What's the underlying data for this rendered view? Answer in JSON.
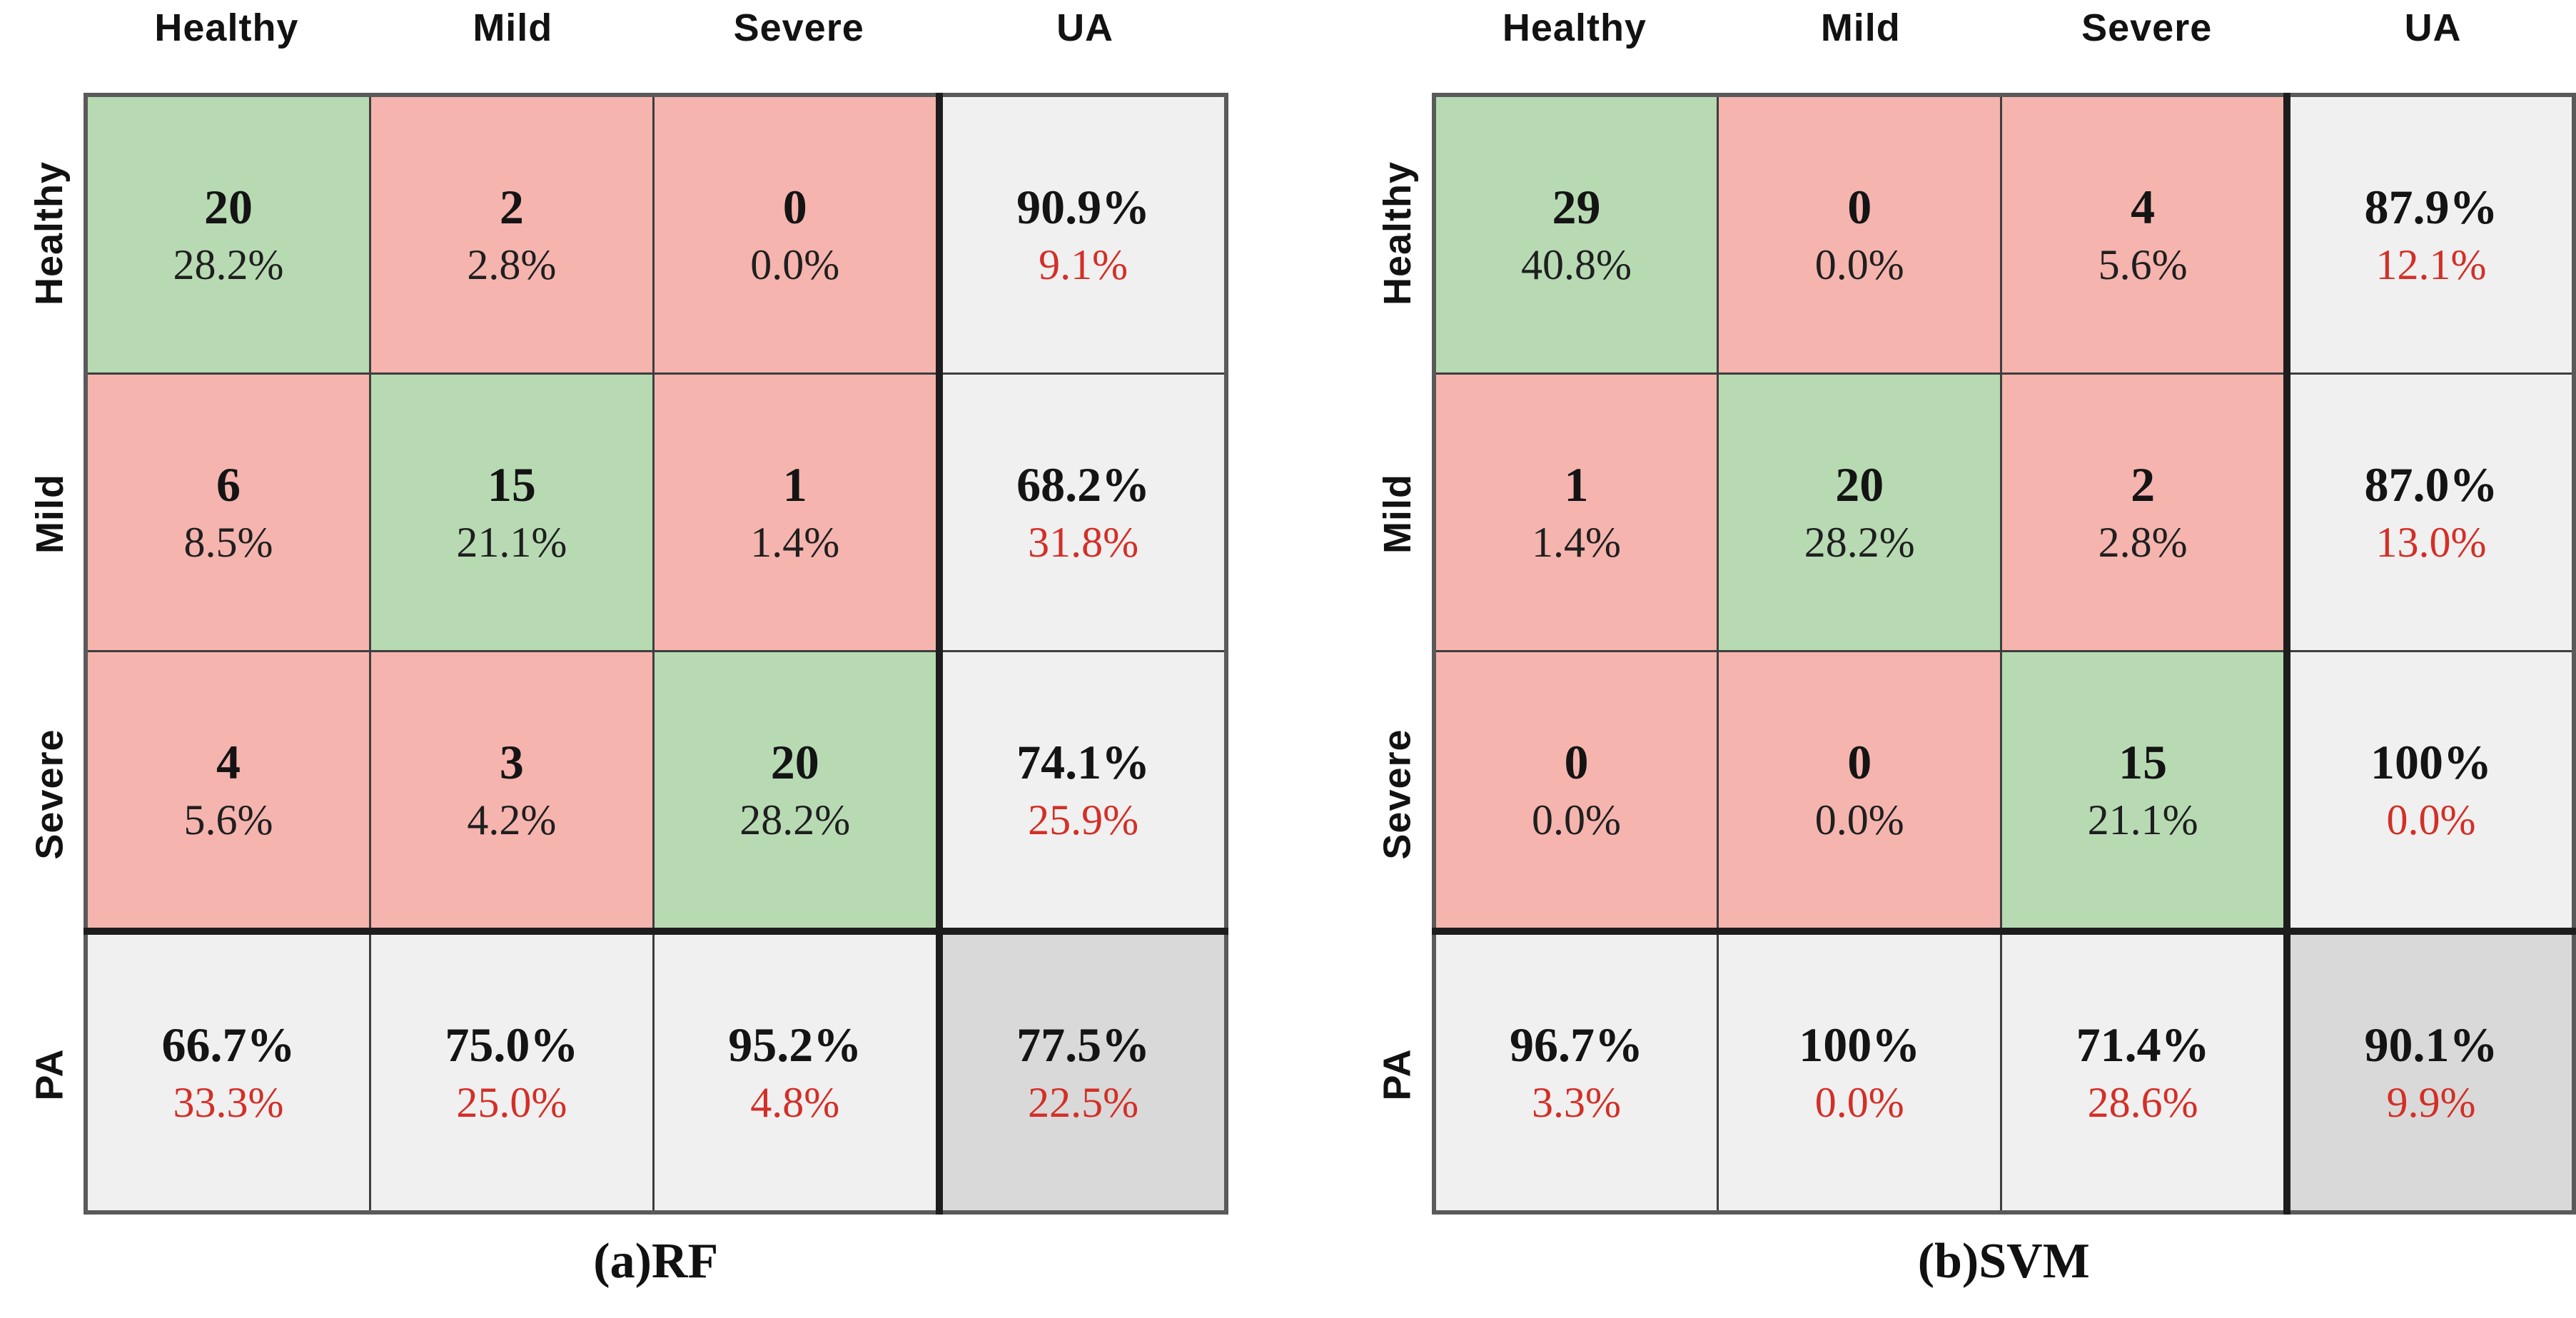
{
  "colors": {
    "diagonal_green": "#b7dab3",
    "offdiag_pink": "#f5b4ae",
    "margin_gray": "#f0f0f0",
    "corner_gray": "#d9d9d9",
    "secondary_red": "#d32f27",
    "thin_border": "#3e3e3e",
    "thick_border": "#1d1d1d",
    "outer_border": "#5a5a5a"
  },
  "chart_data": [
    {
      "type": "heatmap",
      "title": "(a)RF",
      "caption": "(a)RF",
      "col_headers": [
        "Healthy",
        "Mild",
        "Severe",
        "UA"
      ],
      "row_headers": [
        "Healthy",
        "Mild",
        "Severe",
        "PA"
      ],
      "legend_position": "none",
      "grid": true,
      "rows": [
        {
          "cells": [
            {
              "top": "20",
              "bottom": "28.2%",
              "kind": "tp"
            },
            {
              "top": "2",
              "bottom": "2.8%",
              "kind": "fp"
            },
            {
              "top": "0",
              "bottom": "0.0%",
              "kind": "fp"
            },
            {
              "top": "90.9%",
              "bottom": "9.1%",
              "kind": "ua"
            }
          ]
        },
        {
          "cells": [
            {
              "top": "6",
              "bottom": "8.5%",
              "kind": "fp"
            },
            {
              "top": "15",
              "bottom": "21.1%",
              "kind": "tp"
            },
            {
              "top": "1",
              "bottom": "1.4%",
              "kind": "fp"
            },
            {
              "top": "68.2%",
              "bottom": "31.8%",
              "kind": "ua"
            }
          ]
        },
        {
          "cells": [
            {
              "top": "4",
              "bottom": "5.6%",
              "kind": "fp"
            },
            {
              "top": "3",
              "bottom": "4.2%",
              "kind": "fp"
            },
            {
              "top": "20",
              "bottom": "28.2%",
              "kind": "tp"
            },
            {
              "top": "74.1%",
              "bottom": "25.9%",
              "kind": "ua"
            }
          ]
        },
        {
          "cells": [
            {
              "top": "66.7%",
              "bottom": "33.3%",
              "kind": "pa"
            },
            {
              "top": "75.0%",
              "bottom": "25.0%",
              "kind": "pa"
            },
            {
              "top": "95.2%",
              "bottom": "4.8%",
              "kind": "pa"
            },
            {
              "top": "77.5%",
              "bottom": "22.5%",
              "kind": "total"
            }
          ]
        }
      ]
    },
    {
      "type": "heatmap",
      "title": "(b)SVM",
      "caption": "(b)SVM",
      "col_headers": [
        "Healthy",
        "Mild",
        "Severe",
        "UA"
      ],
      "row_headers": [
        "Healthy",
        "Mild",
        "Severe",
        "PA"
      ],
      "legend_position": "none",
      "grid": true,
      "rows": [
        {
          "cells": [
            {
              "top": "29",
              "bottom": "40.8%",
              "kind": "tp"
            },
            {
              "top": "0",
              "bottom": "0.0%",
              "kind": "fp"
            },
            {
              "top": "4",
              "bottom": "5.6%",
              "kind": "fp"
            },
            {
              "top": "87.9%",
              "bottom": "12.1%",
              "kind": "ua"
            }
          ]
        },
        {
          "cells": [
            {
              "top": "1",
              "bottom": "1.4%",
              "kind": "fp"
            },
            {
              "top": "20",
              "bottom": "28.2%",
              "kind": "tp"
            },
            {
              "top": "2",
              "bottom": "2.8%",
              "kind": "fp"
            },
            {
              "top": "87.0%",
              "bottom": "13.0%",
              "kind": "ua"
            }
          ]
        },
        {
          "cells": [
            {
              "top": "0",
              "bottom": "0.0%",
              "kind": "fp"
            },
            {
              "top": "0",
              "bottom": "0.0%",
              "kind": "fp"
            },
            {
              "top": "15",
              "bottom": "21.1%",
              "kind": "tp"
            },
            {
              "top": "100%",
              "bottom": "0.0%",
              "kind": "ua"
            }
          ]
        },
        {
          "cells": [
            {
              "top": "96.7%",
              "bottom": "3.3%",
              "kind": "pa"
            },
            {
              "top": "100%",
              "bottom": "0.0%",
              "kind": "pa"
            },
            {
              "top": "71.4%",
              "bottom": "28.6%",
              "kind": "pa"
            },
            {
              "top": "90.1%",
              "bottom": "9.9%",
              "kind": "total"
            }
          ]
        }
      ]
    }
  ]
}
